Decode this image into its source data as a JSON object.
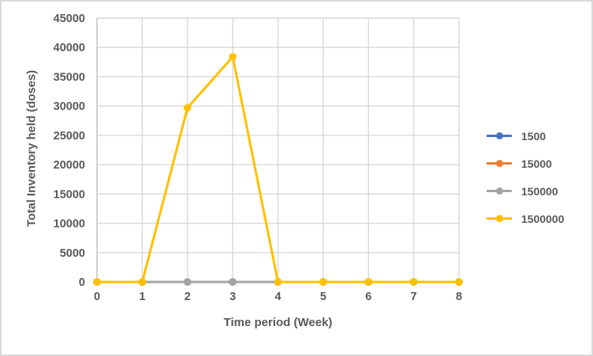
{
  "window": {
    "background_color": "#ffffff",
    "border_color": "#d9d9d9"
  },
  "chart_data": {
    "type": "line",
    "title": "",
    "xlabel": "Time period (Week)",
    "ylabel": "Total Inventory held (doses)",
    "x": [
      0,
      1,
      2,
      3,
      4,
      5,
      6,
      7,
      8
    ],
    "x_tick_labels": [
      "0",
      "1",
      "2",
      "3",
      "4",
      "5",
      "6",
      "7",
      "8"
    ],
    "y_ticks": [
      0,
      5000,
      10000,
      15000,
      20000,
      25000,
      30000,
      35000,
      40000,
      45000
    ],
    "y_tick_labels": [
      "0",
      "5000",
      "10000",
      "15000",
      "20000",
      "25000",
      "30000",
      "35000",
      "40000",
      "45000"
    ],
    "xlim": [
      0,
      8
    ],
    "ylim": [
      0,
      45000
    ],
    "grid": true,
    "legend_position": "right",
    "series": [
      {
        "name": "1500",
        "color": "#4472C4",
        "values": [
          0,
          0,
          0,
          0,
          0,
          0,
          0,
          0,
          0
        ]
      },
      {
        "name": "15000",
        "color": "#ED7D31",
        "values": [
          0,
          0,
          0,
          0,
          0,
          0,
          0,
          0,
          0
        ]
      },
      {
        "name": "150000",
        "color": "#A5A5A5",
        "values": [
          0,
          0,
          0,
          0,
          0,
          0,
          0,
          0,
          0
        ]
      },
      {
        "name": "1500000",
        "color": "#FFC000",
        "values": [
          0,
          0,
          29700,
          38400,
          0,
          0,
          0,
          0,
          0
        ]
      }
    ],
    "colors": {
      "gridline": "#D9D9D9",
      "axis_line": "#BFBFBF",
      "text": "#595959"
    }
  }
}
